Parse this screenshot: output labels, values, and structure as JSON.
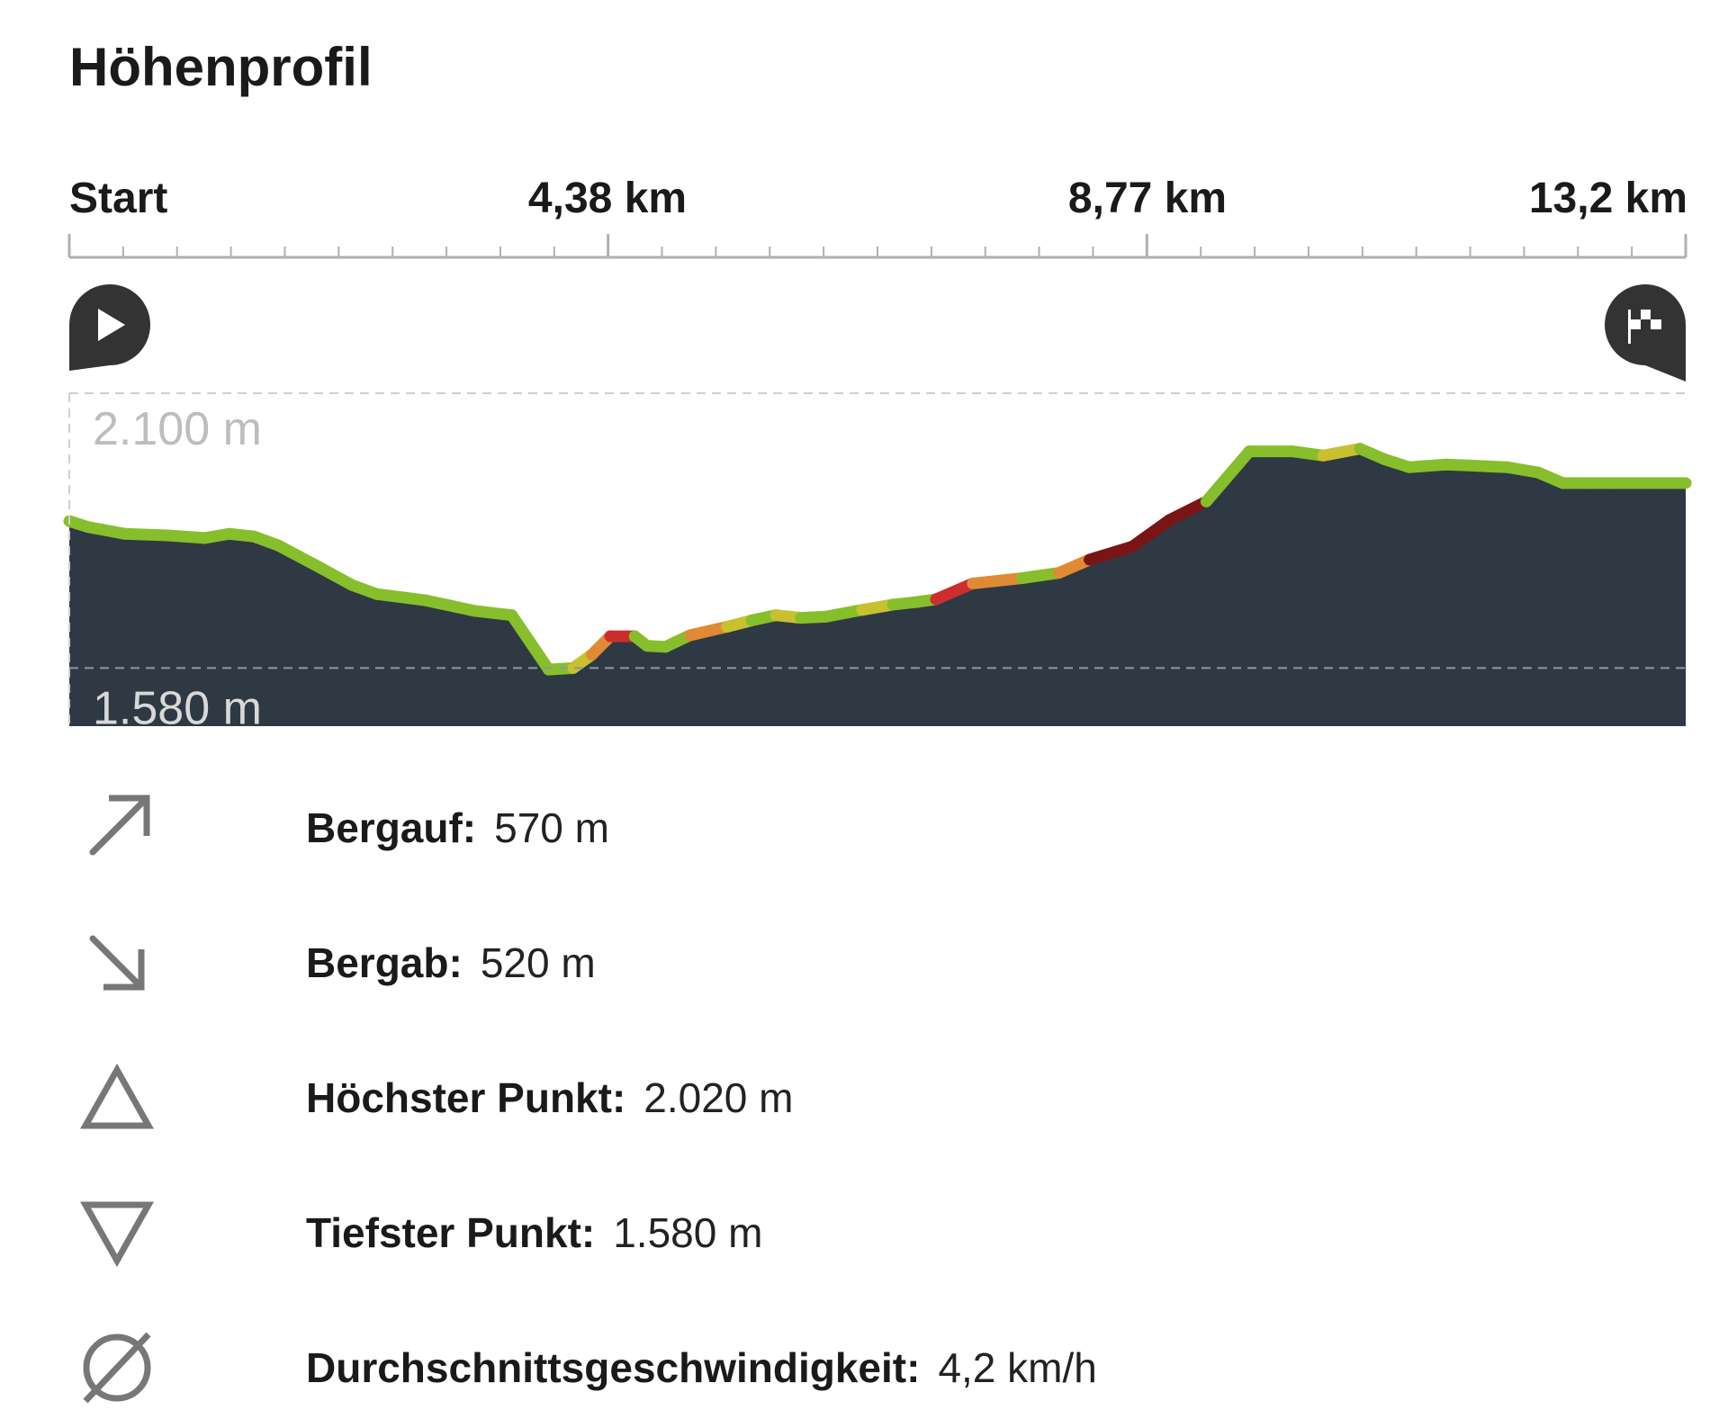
{
  "title": "Höhenprofil",
  "colors": {
    "area": "#2f3944",
    "flat": "#86bf2b",
    "moderate": "#c9c030",
    "steep": "#e08a35",
    "very_steep": "#cc2e2e",
    "extreme": "#7a1516",
    "axis": "#b0b0b0",
    "marker": "#333333",
    "grid_label_top": "#bdbdbd",
    "grid_label_bottom": "#d8d8d8"
  },
  "chart_data": {
    "type": "area",
    "xlabel": "",
    "ylabel": "",
    "x_tick_labels": [
      "Start",
      "4,38 km",
      "8,77 km",
      "13,2 km"
    ],
    "x_ticks_km": [
      0,
      4.38,
      8.77,
      13.15
    ],
    "xlim": [
      0,
      13.15
    ],
    "ylim": [
      1470,
      2100
    ],
    "y_reference_lines": [
      {
        "value": 2100,
        "label": "2.100 m"
      },
      {
        "value": 1580,
        "label": "1.580 m"
      }
    ],
    "grid": false,
    "start_marker": "play-icon",
    "finish_marker": "flag-icon",
    "series": [
      {
        "x": [
          0,
          0.15,
          0.45,
          0.8,
          1.1,
          1.3,
          1.5,
          1.7,
          2.0,
          2.3,
          2.5,
          2.9,
          3.3,
          3.6,
          3.9,
          4.1,
          4.25,
          4.4,
          4.6,
          4.7,
          4.85,
          5.05,
          5.35,
          5.55,
          5.75,
          5.95,
          6.15,
          6.45,
          6.7,
          6.9,
          7.05,
          7.35,
          7.75,
          8.05,
          8.3,
          8.65,
          8.95,
          9.25,
          9.6,
          9.95,
          10.2,
          10.5,
          10.7,
          10.9,
          11.2,
          11.5,
          11.7,
          11.95,
          12.15,
          12.35,
          12.55,
          12.85,
          13.0,
          13.15
        ],
        "y": [
          1858,
          1847,
          1834,
          1831,
          1826,
          1834,
          1829,
          1812,
          1775,
          1737,
          1720,
          1708,
          1688,
          1680,
          1577,
          1580,
          1605,
          1640,
          1640,
          1622,
          1620,
          1642,
          1658,
          1670,
          1680,
          1675,
          1677,
          1690,
          1700,
          1705,
          1710,
          1740,
          1750,
          1760,
          1785,
          1810,
          1860,
          1895,
          1990,
          1990,
          1982,
          1995,
          1975,
          1960,
          1965,
          1962,
          1960,
          1950,
          1930,
          1930,
          1930,
          1930,
          1930,
          1930
        ],
        "slope_colors": [
          "flat",
          "flat",
          "flat",
          "flat",
          "flat",
          "flat",
          "flat",
          "flat",
          "flat",
          "flat",
          "flat",
          "flat",
          "flat",
          "flat",
          "flat",
          "moderate",
          "steep",
          "very_steep",
          "flat",
          "flat",
          "flat",
          "steep",
          "moderate",
          "flat",
          "moderate",
          "flat",
          "flat",
          "moderate",
          "flat",
          "flat",
          "very_steep",
          "steep",
          "flat",
          "steep",
          "extreme",
          "extreme",
          "extreme",
          "flat",
          "flat",
          "flat",
          "moderate",
          "flat",
          "flat",
          "flat",
          "flat",
          "flat",
          "flat",
          "flat",
          "flat",
          "flat",
          "flat",
          "flat",
          "flat"
        ]
      }
    ]
  },
  "stats": [
    {
      "icon": "arrow-up-right-icon",
      "label": "Bergauf:",
      "value": "570 m"
    },
    {
      "icon": "arrow-down-right-icon",
      "label": "Bergab:",
      "value": "520 m"
    },
    {
      "icon": "triangle-up-icon",
      "label": "Höchster Punkt:",
      "value": "2.020 m"
    },
    {
      "icon": "triangle-down-icon",
      "label": "Tiefster Punkt:",
      "value": "1.580 m"
    },
    {
      "icon": "average-icon",
      "label": "Durchschnittsgeschwindigkeit:",
      "value": "4,2 km/h"
    }
  ]
}
